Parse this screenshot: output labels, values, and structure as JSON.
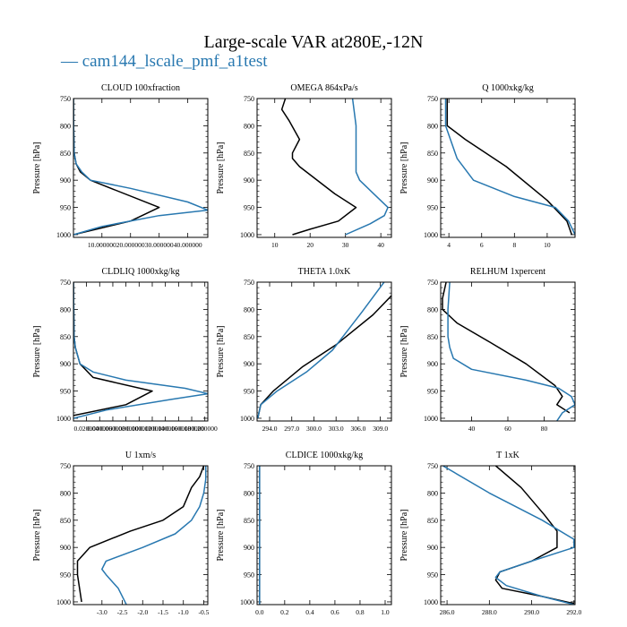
{
  "figure": {
    "title": "Large-scale VAR at280E,-12N",
    "legend_label": "cam144_lscale_pmf_a1test",
    "legend_mark": "—",
    "colors": {
      "black": "#000000",
      "blue": "#2878b0"
    }
  },
  "chart_data": [
    {
      "type": "line",
      "title": "CLOUD  100xfraction",
      "ylabel": "Pressure [hPa]",
      "xlim": [
        0.05,
        47
      ],
      "ylim": [
        1005,
        750
      ],
      "xticks": [
        10,
        20,
        30,
        40
      ],
      "xtick_labels": [
        "10.000000",
        "20.000000",
        "30.000000",
        "40.000000"
      ],
      "yticks": [
        750,
        800,
        850,
        900,
        950,
        1000
      ],
      "ytick_labels": [
        "750",
        "800",
        "850",
        "900",
        "950",
        "1000"
      ],
      "series": [
        {
          "name": "black",
          "color": "#000000",
          "x": [
            0.05,
            0.1,
            0.3,
            1,
            2.5,
            6,
            30,
            20,
            0.05
          ],
          "y": [
            750,
            800,
            850,
            870,
            885,
            900,
            950,
            975,
            1000
          ]
        },
        {
          "name": "cam144_lscale_pmf_a1test",
          "color": "#2878b0",
          "x": [
            0.05,
            0.1,
            0.3,
            1,
            3,
            6,
            20,
            40,
            47,
            30,
            10,
            0.05
          ],
          "y": [
            750,
            800,
            850,
            870,
            885,
            900,
            915,
            940,
            955,
            965,
            985,
            1000
          ]
        }
      ]
    },
    {
      "type": "line",
      "title": "OMEGA  864xPa/s",
      "ylabel": "Pressure [hPa]",
      "xlim": [
        5,
        43
      ],
      "ylim": [
        1005,
        750
      ],
      "xticks": [
        10,
        20,
        30,
        40
      ],
      "xtick_labels": [
        "10",
        "20",
        "30",
        "40"
      ],
      "yticks": [
        750,
        800,
        850,
        900,
        950,
        1000
      ],
      "ytick_labels": [
        "750",
        "800",
        "850",
        "900",
        "950",
        "1000"
      ],
      "series": [
        {
          "name": "black",
          "color": "#000000",
          "x": [
            13,
            12,
            14,
            17,
            15,
            15,
            17,
            27,
            33,
            28,
            20,
            15
          ],
          "y": [
            750,
            770,
            790,
            825,
            850,
            860,
            875,
            925,
            950,
            975,
            990,
            1000
          ]
        },
        {
          "name": "cam144_lscale_pmf_a1test",
          "color": "#2878b0",
          "x": [
            32,
            33,
            33,
            33,
            33,
            34,
            38,
            42,
            41,
            37,
            30
          ],
          "y": [
            750,
            800,
            850,
            870,
            885,
            900,
            925,
            950,
            965,
            980,
            1000
          ]
        }
      ]
    },
    {
      "type": "line",
      "title": "Q  1000xkg/kg",
      "ylabel": "Pressure [hPa]",
      "xlim": [
        3.5,
        11.7
      ],
      "ylim": [
        1005,
        750
      ],
      "xticks": [
        4,
        6,
        8,
        10
      ],
      "xtick_labels": [
        "4",
        "6",
        "8",
        "10"
      ],
      "yticks": [
        750,
        800,
        850,
        900,
        950,
        1000
      ],
      "ytick_labels": [
        "750",
        "800",
        "850",
        "900",
        "950",
        "1000"
      ],
      "series": [
        {
          "name": "black",
          "color": "#000000",
          "x": [
            3.9,
            3.9,
            5.0,
            7.5,
            10.0,
            11.2,
            11.5
          ],
          "y": [
            750,
            800,
            825,
            875,
            937,
            975,
            1000
          ]
        },
        {
          "name": "cam144_lscale_pmf_a1test",
          "color": "#2878b0",
          "x": [
            3.8,
            3.8,
            4.5,
            5.5,
            8.0,
            10.5,
            11.3,
            11.7
          ],
          "y": [
            750,
            800,
            860,
            900,
            930,
            950,
            975,
            1000
          ]
        }
      ]
    },
    {
      "type": "line",
      "title": "CLDLIQ  1000xkg/kg",
      "ylabel": "Pressure [hPa]",
      "xlim": [
        0.0001,
        0.2045
      ],
      "ylim": [
        1005,
        750
      ],
      "xticks": [
        0.02,
        0.04,
        0.06,
        0.08,
        0.1,
        0.12,
        0.14,
        0.16,
        0.18,
        0.2
      ],
      "xtick_labels": [
        "0.020000",
        "0.040000",
        "0.060000",
        "0.080000",
        "0.100000",
        "0.120000",
        "0.140000",
        "0.160000",
        "0.180000",
        "0.200000"
      ],
      "yticks": [
        750,
        800,
        850,
        900,
        950,
        1000
      ],
      "ytick_labels": [
        "750",
        "800",
        "850",
        "900",
        "950",
        "1000"
      ],
      "series": [
        {
          "name": "black",
          "color": "#000000",
          "x": [
            0.0001,
            0.001,
            0.003,
            0.01,
            0.03,
            0.12,
            0.08,
            0.0001
          ],
          "y": [
            750,
            850,
            870,
            900,
            925,
            950,
            975,
            995
          ]
        },
        {
          "name": "cam144_lscale_pmf_a1test",
          "color": "#2878b0",
          "x": [
            0.0001,
            0.001,
            0.003,
            0.01,
            0.03,
            0.08,
            0.17,
            0.205,
            0.15,
            0.05,
            0.0001
          ],
          "y": [
            750,
            850,
            870,
            900,
            915,
            930,
            945,
            955,
            965,
            985,
            1000
          ]
        }
      ]
    },
    {
      "type": "line",
      "title": "THETA  1.0xK",
      "ylabel": "Pressure [hPa]",
      "xlim": [
        292.3,
        310.5
      ],
      "ylim": [
        1005,
        750
      ],
      "xticks": [
        294,
        297,
        300,
        303,
        306,
        309
      ],
      "xtick_labels": [
        "294.0",
        "297.0",
        "300.0",
        "303.0",
        "306.0",
        "309.0"
      ],
      "yticks": [
        750,
        800,
        850,
        900,
        950,
        1000
      ],
      "ytick_labels": [
        "750",
        "800",
        "850",
        "900",
        "950",
        "1000"
      ],
      "series": [
        {
          "name": "black",
          "color": "#000000",
          "x": [
            310.5,
            308.0,
            303.0,
            298.5,
            294.5,
            292.8,
            292.4
          ],
          "y": [
            775,
            810,
            865,
            905,
            950,
            975,
            1000
          ]
        },
        {
          "name": "cam144_lscale_pmf_a1test",
          "color": "#2878b0",
          "x": [
            309.5,
            306.5,
            302.5,
            299.0,
            295.0,
            292.8,
            292.4
          ],
          "y": [
            750,
            805,
            875,
            915,
            950,
            975,
            1000
          ]
        }
      ]
    },
    {
      "type": "line",
      "title": "RELHUM  1xpercent",
      "ylabel": "Pressure [hPa]",
      "xlim": [
        23,
        97
      ],
      "ylim": [
        1005,
        750
      ],
      "xticks": [
        40,
        60,
        80
      ],
      "xtick_labels": [
        "40",
        "60",
        "80"
      ],
      "yticks": [
        750,
        800,
        850,
        900,
        950,
        1000
      ],
      "ytick_labels": [
        "750",
        "800",
        "850",
        "900",
        "950",
        "1000"
      ],
      "series": [
        {
          "name": "black",
          "color": "#000000",
          "x": [
            26,
            24,
            24,
            32,
            50,
            70,
            86,
            90,
            87,
            94
          ],
          "y": [
            750,
            780,
            800,
            825,
            860,
            900,
            940,
            960,
            975,
            990
          ]
        },
        {
          "name": "cam144_lscale_pmf_a1test",
          "color": "#2878b0",
          "x": [
            28,
            27,
            27,
            28,
            30,
            40,
            70,
            88,
            95,
            97,
            90,
            87
          ],
          "y": [
            750,
            800,
            850,
            870,
            890,
            910,
            930,
            945,
            960,
            975,
            990,
            1005
          ]
        }
      ]
    },
    {
      "type": "line",
      "title": "U  1xm/s",
      "ylabel": "Pressure [hPa]",
      "xlim": [
        -3.7,
        -0.4
      ],
      "ylim": [
        1005,
        750
      ],
      "xticks": [
        -3.0,
        -2.5,
        -2.0,
        -1.5,
        -1.0,
        -0.5
      ],
      "xtick_labels": [
        "-3.0",
        "-2.5",
        "-2.0",
        "-1.5",
        "-1.0",
        "-0.5"
      ],
      "yticks": [
        750,
        800,
        850,
        900,
        950,
        1000
      ],
      "ytick_labels": [
        "750",
        "800",
        "850",
        "900",
        "950",
        "1000"
      ],
      "series": [
        {
          "name": "black",
          "color": "#000000",
          "x": [
            -0.5,
            -0.6,
            -0.8,
            -1.0,
            -1.5,
            -2.3,
            -3.3,
            -3.6,
            -3.6,
            -3.5
          ],
          "y": [
            750,
            770,
            790,
            825,
            850,
            870,
            900,
            925,
            950,
            1000
          ]
        },
        {
          "name": "cam144_lscale_pmf_a1test",
          "color": "#2878b0",
          "x": [
            -0.45,
            -0.45,
            -0.5,
            -0.6,
            -0.8,
            -1.2,
            -2.0,
            -2.9,
            -3.0,
            -2.9,
            -2.6,
            -2.4
          ],
          "y": [
            750,
            775,
            800,
            825,
            850,
            875,
            900,
            925,
            940,
            950,
            975,
            1005
          ]
        }
      ]
    },
    {
      "type": "line",
      "title": "CLDICE  1000xkg/kg",
      "ylabel": "Pressure [hPa]",
      "xlim": [
        -0.02,
        1.05
      ],
      "ylim": [
        1005,
        750
      ],
      "xticks": [
        0.0,
        0.2,
        0.4,
        0.6,
        0.8,
        1.0
      ],
      "xtick_labels": [
        "0.0",
        "0.2",
        "0.4",
        "0.6",
        "0.8",
        "1.0"
      ],
      "yticks": [
        750,
        800,
        850,
        900,
        950,
        1000
      ],
      "ytick_labels": [
        "750",
        "800",
        "850",
        "900",
        "950",
        "1000"
      ],
      "series": [
        {
          "name": "black",
          "color": "#000000",
          "x": [
            0.0,
            0.0
          ],
          "y": [
            750,
            1005
          ]
        },
        {
          "name": "cam144_lscale_pmf_a1test",
          "color": "#2878b0",
          "x": [
            0.0,
            0.0
          ],
          "y": [
            750,
            1005
          ]
        }
      ]
    },
    {
      "type": "line",
      "title": "T  1xK",
      "ylabel": "Pressure [hPa]",
      "xlim": [
        285.7,
        292.05
      ],
      "ylim": [
        1005,
        750
      ],
      "xticks": [
        286,
        288,
        290,
        292
      ],
      "xtick_labels": [
        "286.0",
        "288.0",
        "290.0",
        "292.0"
      ],
      "yticks": [
        750,
        800,
        850,
        900,
        950,
        1000
      ],
      "ytick_labels": [
        "750",
        "800",
        "850",
        "900",
        "950",
        "1000"
      ],
      "series": [
        {
          "name": "black",
          "color": "#000000",
          "x": [
            288.3,
            289.5,
            290.6,
            291.2,
            291.2,
            290.0,
            288.5,
            288.3,
            288.6,
            290.5,
            292.0
          ],
          "y": [
            750,
            790,
            840,
            870,
            900,
            925,
            945,
            960,
            975,
            990,
            1003
          ]
        },
        {
          "name": "cam144_lscale_pmf_a1test",
          "color": "#2878b0",
          "x": [
            285.8,
            288.0,
            290.5,
            292.0,
            292.0,
            290.0,
            288.5,
            288.3,
            288.8,
            290.5,
            292.0
          ],
          "y": [
            750,
            800,
            850,
            885,
            900,
            925,
            945,
            955,
            970,
            990,
            1005
          ]
        }
      ]
    }
  ]
}
